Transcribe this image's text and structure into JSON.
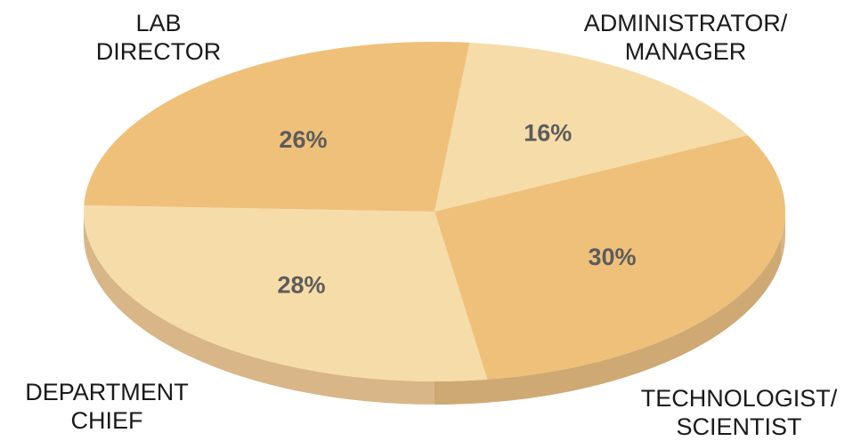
{
  "chart_data": {
    "type": "pie",
    "slices": [
      {
        "label_lines": [
          "LAB",
          "DIRECTOR"
        ],
        "value": 26,
        "value_label": "26%",
        "color": "#efc07a"
      },
      {
        "label_lines": [
          "ADMINISTRATOR/",
          "MANAGER"
        ],
        "value": 16,
        "value_label": "16%",
        "color": "#f6dca9"
      },
      {
        "label_lines": [
          "TECHNOLOGIST/",
          "SCIENTIST"
        ],
        "value": 30,
        "value_label": "30%",
        "color": "#efc07a"
      },
      {
        "label_lines": [
          "DEPARTMENT",
          "CHIEF"
        ],
        "value": 28,
        "value_label": "28%",
        "color": "#f6dca9"
      }
    ],
    "style": "3d-tilted",
    "value_label_color": "#5c5c5c",
    "side_color": "#d8b687",
    "side_shadow_color": "#c79e62"
  }
}
